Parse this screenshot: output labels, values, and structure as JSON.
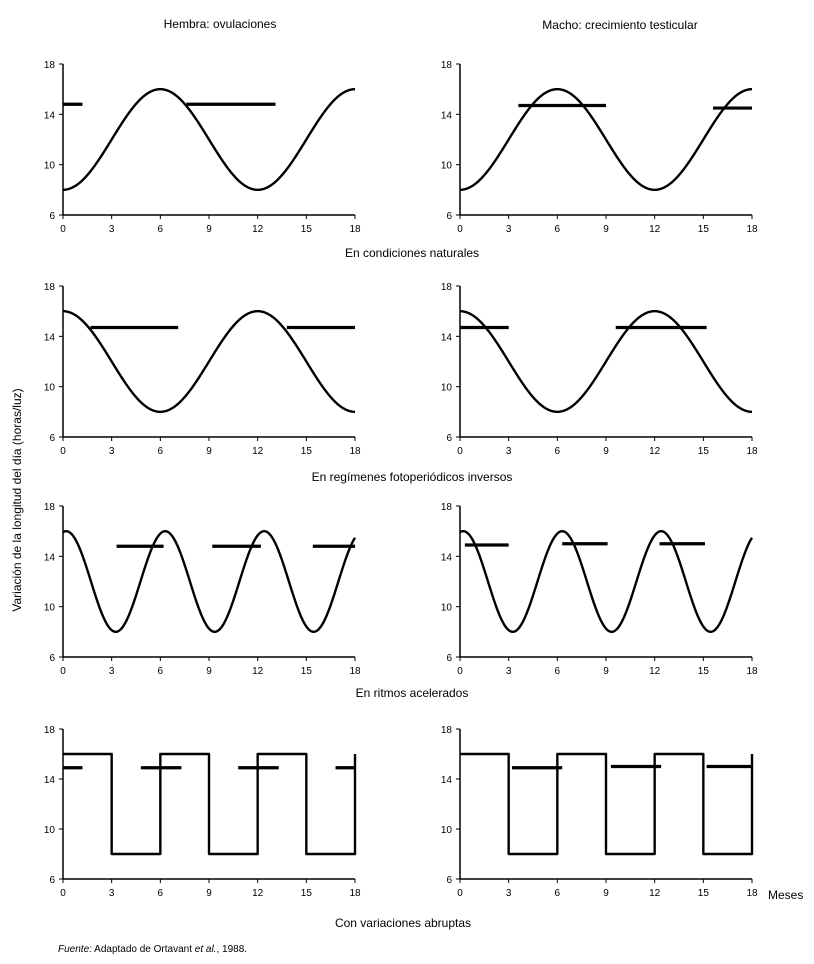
{
  "figure": {
    "column_titles": [
      "Hembra: ovulaciones",
      "Macho: crecimiento testicular"
    ],
    "y_axis_label": "Variación de la longitud del día (horas/luz)",
    "x_axis_unit": "Meses",
    "source_prefix": "Fuente:",
    "source_text": " Adaptado de Ortavant ",
    "source_etal": "et al.",
    "source_year": ", 1988."
  },
  "chart_data": [
    {
      "type": "line",
      "row": 0,
      "column": 0,
      "condition": "En condiciones naturales",
      "title": "Hembra: ovulaciones",
      "xlabel": "",
      "ylabel": "Variación de la longitud del día (horas/luz)",
      "x_ticks": [
        "0",
        "3",
        "6",
        "9",
        "12",
        "15",
        "18"
      ],
      "y_ticks": [
        "6",
        "10",
        "14",
        "18"
      ],
      "xlim": [
        0,
        18
      ],
      "ylim": [
        6,
        18
      ],
      "photoperiod": {
        "shape": "sine",
        "min": 8,
        "max": 16,
        "period_months": 12,
        "peak_month": 6
      },
      "activity_bars": [
        {
          "start": 0,
          "end": 1.2,
          "y": 14.8
        },
        {
          "start": 7.6,
          "end": 13.1,
          "y": 14.8
        }
      ]
    },
    {
      "type": "line",
      "row": 0,
      "column": 1,
      "condition": "En condiciones naturales",
      "title": "Macho: crecimiento testicular",
      "x_ticks": [
        "0",
        "3",
        "6",
        "9",
        "12",
        "15",
        "18"
      ],
      "y_ticks": [
        "6",
        "10",
        "14",
        "18"
      ],
      "xlim": [
        0,
        18
      ],
      "ylim": [
        6,
        18
      ],
      "photoperiod": {
        "shape": "sine",
        "min": 8,
        "max": 16,
        "period_months": 12,
        "peak_month": 6
      },
      "activity_bars": [
        {
          "start": 3.6,
          "end": 9.0,
          "y": 14.7
        },
        {
          "start": 15.6,
          "end": 18,
          "y": 14.5
        }
      ]
    },
    {
      "type": "line",
      "row": 1,
      "column": 0,
      "condition": "En regímenes fotoperiódicos inversos",
      "x_ticks": [
        "0",
        "3",
        "6",
        "9",
        "12",
        "15",
        "18"
      ],
      "y_ticks": [
        "6",
        "10",
        "14",
        "18"
      ],
      "xlim": [
        0,
        18
      ],
      "ylim": [
        6,
        18
      ],
      "photoperiod": {
        "shape": "sine",
        "min": 8,
        "max": 16,
        "period_months": 12,
        "peak_month": 12
      },
      "activity_bars": [
        {
          "start": 1.7,
          "end": 7.1,
          "y": 14.7
        },
        {
          "start": 13.8,
          "end": 18,
          "y": 14.7
        }
      ]
    },
    {
      "type": "line",
      "row": 1,
      "column": 1,
      "condition": "En regímenes fotoperiódicos inversos",
      "x_ticks": [
        "0",
        "3",
        "6",
        "9",
        "12",
        "15",
        "18"
      ],
      "y_ticks": [
        "6",
        "10",
        "14",
        "18"
      ],
      "xlim": [
        0,
        18
      ],
      "ylim": [
        6,
        18
      ],
      "photoperiod": {
        "shape": "sine",
        "min": 8,
        "max": 16,
        "period_months": 12,
        "peak_month": 12
      },
      "activity_bars": [
        {
          "start": 0,
          "end": 3.0,
          "y": 14.7
        },
        {
          "start": 9.6,
          "end": 15.2,
          "y": 14.7
        }
      ]
    },
    {
      "type": "line",
      "row": 2,
      "column": 0,
      "condition": "En ritmos acelerados",
      "x_ticks": [
        "0",
        "3",
        "6",
        "9",
        "12",
        "15",
        "18"
      ],
      "y_ticks": [
        "6",
        "10",
        "14",
        "18"
      ],
      "xlim": [
        0,
        18
      ],
      "ylim": [
        6,
        18
      ],
      "photoperiod": {
        "shape": "sine",
        "min": 8,
        "max": 16,
        "period_months": 6.1,
        "peak_month": 0.2
      },
      "activity_bars": [
        {
          "start": 3.3,
          "end": 6.2,
          "y": 14.8
        },
        {
          "start": 9.2,
          "end": 12.2,
          "y": 14.8
        },
        {
          "start": 15.4,
          "end": 18,
          "y": 14.8
        }
      ]
    },
    {
      "type": "line",
      "row": 2,
      "column": 1,
      "condition": "En ritmos acelerados",
      "x_ticks": [
        "0",
        "3",
        "6",
        "9",
        "12",
        "15",
        "18"
      ],
      "y_ticks": [
        "6",
        "10",
        "14",
        "18"
      ],
      "xlim": [
        0,
        18
      ],
      "ylim": [
        6,
        18
      ],
      "photoperiod": {
        "shape": "sine",
        "min": 8,
        "max": 16,
        "period_months": 6.1,
        "peak_month": 0.2
      },
      "activity_bars": [
        {
          "start": 0.3,
          "end": 3.0,
          "y": 14.9
        },
        {
          "start": 6.3,
          "end": 9.1,
          "y": 15.0
        },
        {
          "start": 12.3,
          "end": 15.1,
          "y": 15.0
        }
      ]
    },
    {
      "type": "line",
      "row": 3,
      "column": 0,
      "condition": "Con variaciones abruptas",
      "x_ticks": [
        "0",
        "3",
        "6",
        "9",
        "12",
        "15",
        "18"
      ],
      "y_ticks": [
        "6",
        "10",
        "14",
        "18"
      ],
      "xlim": [
        0,
        18
      ],
      "ylim": [
        6,
        18
      ],
      "photoperiod": {
        "shape": "square",
        "min": 8,
        "max": 16,
        "high_intervals": [
          [
            0,
            3
          ],
          [
            6,
            9
          ],
          [
            12,
            15
          ]
        ]
      },
      "activity_bars": [
        {
          "start": 0,
          "end": 1.2,
          "y": 14.9
        },
        {
          "start": 4.8,
          "end": 7.3,
          "y": 14.9
        },
        {
          "start": 10.8,
          "end": 13.3,
          "y": 14.9
        },
        {
          "start": 16.8,
          "end": 18,
          "y": 14.9
        }
      ]
    },
    {
      "type": "line",
      "row": 3,
      "column": 1,
      "condition": "Con variaciones abruptas",
      "x_ticks": [
        "0",
        "3",
        "6",
        "9",
        "12",
        "15",
        "18"
      ],
      "y_ticks": [
        "6",
        "10",
        "14",
        "18"
      ],
      "xlim": [
        0,
        18
      ],
      "ylim": [
        6,
        18
      ],
      "photoperiod": {
        "shape": "square",
        "min": 8,
        "max": 16,
        "high_intervals": [
          [
            0,
            3
          ],
          [
            6,
            9
          ],
          [
            12,
            15
          ]
        ]
      },
      "activity_bars": [
        {
          "start": 3.2,
          "end": 6.3,
          "y": 14.9
        },
        {
          "start": 9.3,
          "end": 12.4,
          "y": 15.0
        },
        {
          "start": 15.2,
          "end": 18,
          "y": 15.0
        }
      ]
    }
  ]
}
